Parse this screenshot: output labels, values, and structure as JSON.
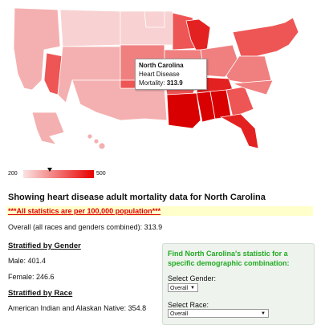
{
  "tooltip": {
    "state": "North Carolina",
    "label": "Heart Disease Mortality:",
    "value": "313.9"
  },
  "legend": {
    "min": "200",
    "max": "500",
    "marker_fraction": 0.38
  },
  "colors": {
    "light": "#f8d2d2",
    "pale": "#f4b0b0",
    "medium": "#f08080",
    "strong": "#ee5555",
    "dark": "#e42121",
    "darkest": "#d80000"
  },
  "heading": "Showing heart disease adult mortality data for North Carolina",
  "note": "***All statistics are per 100,000 population***",
  "overall": "Overall (all races and genders combined): 313.9",
  "gender": {
    "title": "Stratified by Gender",
    "male": "Male: 401.4",
    "female": "Female: 246.6"
  },
  "race": {
    "title": "Stratified by Race",
    "first": "American Indian and Alaskan Native: 354.8"
  },
  "panel": {
    "title": "Find North Carolina's statistic for a specific demographic combination:",
    "gender_label": "Select Gender:",
    "gender_value": "Overall",
    "race_label": "Select Race:",
    "race_value": "Overall"
  }
}
